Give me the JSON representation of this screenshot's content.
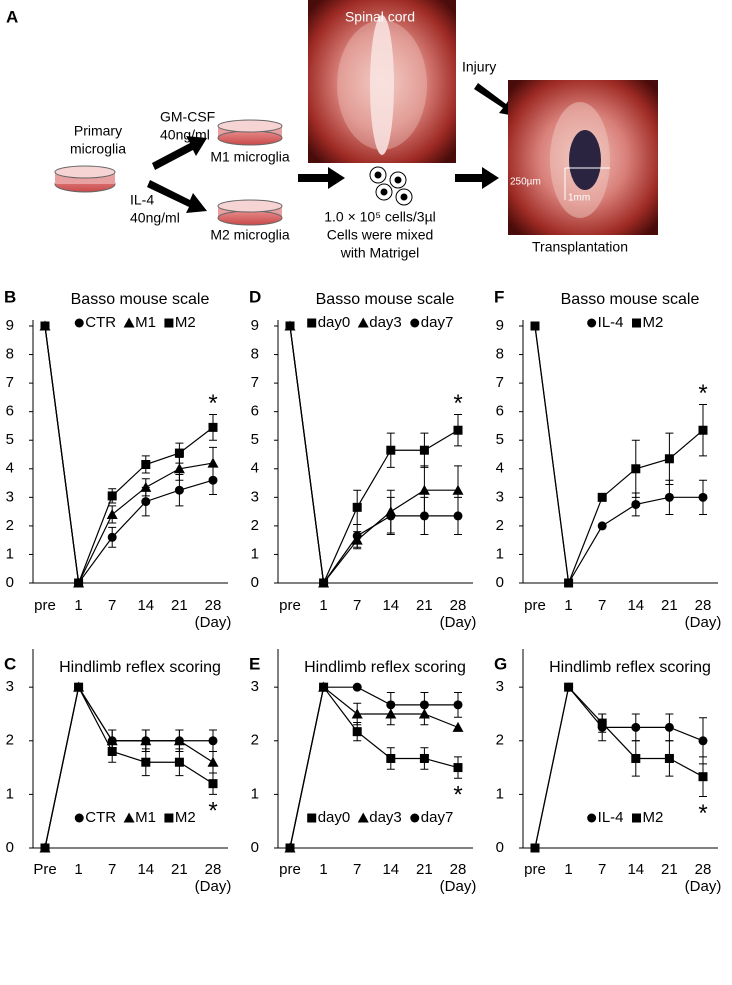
{
  "schematic": {
    "panel": "A",
    "primary": [
      "Primary",
      "microglia"
    ],
    "gmcsf": [
      "GM-CSF",
      "40ng/ml"
    ],
    "il4": [
      "IL-4",
      "40ng/ml"
    ],
    "m1": "M1 microglia",
    "m2": "M2 microglia",
    "spinal_cord": "Spinal cord",
    "injury": "Injury",
    "cells": [
      "1.0 × 10⁵ cells/3µl",
      "Cells were mixed",
      "with Matrigel"
    ],
    "transplantation": "Transplantation",
    "scale_width": "250µm",
    "scale_length": "1mm"
  },
  "chart_data": [
    {
      "type": "line",
      "panel": "B",
      "title": "Basso mouse scale",
      "categories": [
        "pre",
        "1",
        "7",
        "14",
        "21",
        "28"
      ],
      "x_label": "(Day)",
      "ylim": [
        0,
        9
      ],
      "yticks": [
        0,
        1,
        2,
        3,
        4,
        5,
        6,
        7,
        8,
        9
      ],
      "legend": "top",
      "annotation": "*",
      "series": [
        {
          "name": "CTR",
          "marker": "circle",
          "color": "#000000",
          "values": [
            9,
            0,
            1.6,
            2.85,
            3.25,
            3.6
          ],
          "errors": [
            null,
            null,
            0.35,
            0.5,
            0.55,
            0.5
          ]
        },
        {
          "name": "M1",
          "marker": "triangle",
          "color": "#000000",
          "values": [
            9,
            0,
            2.4,
            3.35,
            4.0,
            4.2
          ],
          "errors": [
            null,
            null,
            0.3,
            0.3,
            0.4,
            0.55
          ]
        },
        {
          "name": "M2",
          "marker": "square",
          "color": "#000000",
          "values": [
            9,
            0,
            3.05,
            4.15,
            4.55,
            5.45
          ],
          "errors": [
            null,
            null,
            0.25,
            0.3,
            0.35,
            0.45
          ]
        }
      ]
    },
    {
      "type": "line",
      "panel": "D",
      "title": "Basso mouse scale",
      "categories": [
        "pre",
        "1",
        "7",
        "14",
        "21",
        "28"
      ],
      "x_label": "(Day)",
      "ylim": [
        0,
        9
      ],
      "yticks": [
        0,
        1,
        2,
        3,
        4,
        5,
        6,
        7,
        8,
        9
      ],
      "legend": "top",
      "annotation": "*",
      "series": [
        {
          "name": "day0",
          "marker": "square",
          "color": "#000000",
          "values": [
            9,
            0,
            2.65,
            4.65,
            4.65,
            5.35
          ],
          "errors": [
            null,
            null,
            0.6,
            0.6,
            0.6,
            0.55
          ]
        },
        {
          "name": "day3",
          "marker": "triangle",
          "color": "#000000",
          "values": [
            9,
            0,
            1.5,
            2.5,
            3.25,
            3.25
          ],
          "errors": [
            null,
            null,
            0.3,
            0.75,
            0.85,
            0.85
          ]
        },
        {
          "name": "day7",
          "marker": "circle",
          "color": "#000000",
          "values": [
            9,
            0,
            1.65,
            2.35,
            2.35,
            2.35
          ],
          "errors": [
            null,
            null,
            0.4,
            0.65,
            0.65,
            0.65
          ]
        }
      ]
    },
    {
      "type": "line",
      "panel": "F",
      "title": "Basso mouse scale",
      "categories": [
        "pre",
        "1",
        "7",
        "14",
        "21",
        "28"
      ],
      "x_label": "(Day)",
      "ylim": [
        0,
        9
      ],
      "yticks": [
        0,
        1,
        2,
        3,
        4,
        5,
        6,
        7,
        8,
        9
      ],
      "legend": "top",
      "annotation": "*",
      "series": [
        {
          "name": "IL-4",
          "marker": "circle",
          "color": "#000000",
          "values": [
            9,
            0,
            2.0,
            2.75,
            3.0,
            3.0
          ],
          "errors": [
            null,
            null,
            null,
            0.4,
            0.6,
            0.6
          ]
        },
        {
          "name": "M2",
          "marker": "square",
          "color": "#000000",
          "values": [
            9,
            0,
            3.0,
            4.0,
            4.35,
            5.35
          ],
          "errors": [
            null,
            null,
            null,
            1.0,
            0.9,
            0.9
          ]
        }
      ]
    },
    {
      "type": "line",
      "panel": "C",
      "title": "Hindlimb reflex scoring",
      "categories": [
        "Pre",
        "1",
        "7",
        "14",
        "21",
        "28"
      ],
      "x_label": "(Day)",
      "ylim": [
        0,
        3.6
      ],
      "yticks": [
        0,
        1,
        2,
        3
      ],
      "legend": "bottom",
      "annotation": "*",
      "series": [
        {
          "name": "CTR",
          "marker": "circle",
          "color": "#000000",
          "values": [
            0,
            3,
            2,
            2,
            2,
            2
          ],
          "errors": [
            null,
            null,
            0.2,
            0.2,
            0.2,
            0.2
          ]
        },
        {
          "name": "M1",
          "marker": "triangle",
          "color": "#000000",
          "values": [
            0,
            3,
            2,
            2,
            2,
            1.6
          ],
          "errors": [
            null,
            null,
            0.2,
            0.2,
            0.2,
            0.2
          ]
        },
        {
          "name": "M2",
          "marker": "square",
          "color": "#000000",
          "values": [
            0,
            3,
            1.8,
            1.6,
            1.6,
            1.2
          ],
          "errors": [
            null,
            null,
            0.2,
            0.25,
            0.25,
            0.2
          ]
        }
      ]
    },
    {
      "type": "line",
      "panel": "E",
      "title": "Hindlimb reflex scoring",
      "categories": [
        "pre",
        "1",
        "7",
        "14",
        "21",
        "28"
      ],
      "x_label": "(Day)",
      "ylim": [
        0,
        3.6
      ],
      "yticks": [
        0,
        1,
        2,
        3
      ],
      "legend": "bottom",
      "annotation": "*",
      "series": [
        {
          "name": "day0",
          "marker": "square",
          "color": "#000000",
          "values": [
            0,
            3,
            2.17,
            1.67,
            1.67,
            1.5
          ],
          "errors": [
            null,
            null,
            0.17,
            0.2,
            0.2,
            0.2
          ]
        },
        {
          "name": "day3",
          "marker": "triangle",
          "color": "#000000",
          "values": [
            0,
            3,
            2.5,
            2.5,
            2.5,
            2.25
          ],
          "errors": [
            null,
            null,
            0.2,
            0.2,
            0.2,
            null
          ]
        },
        {
          "name": "day7",
          "marker": "circle",
          "color": "#000000",
          "values": [
            0,
            3,
            3,
            2.67,
            2.67,
            2.67
          ],
          "errors": [
            null,
            null,
            null,
            0.23,
            0.23,
            0.23
          ]
        }
      ]
    },
    {
      "type": "line",
      "panel": "G",
      "title": "Hindlimb reflex scoring",
      "categories": [
        "pre",
        "1",
        "7",
        "14",
        "21",
        "28"
      ],
      "x_label": "(Day)",
      "ylim": [
        0,
        3.6
      ],
      "yticks": [
        0,
        1,
        2,
        3
      ],
      "legend": "bottom",
      "annotation": "*",
      "series": [
        {
          "name": "IL-4",
          "marker": "circle",
          "color": "#000000",
          "values": [
            0,
            3,
            2.25,
            2.25,
            2.25,
            2.0
          ],
          "errors": [
            null,
            null,
            0.25,
            0.25,
            0.25,
            0.43
          ]
        },
        {
          "name": "M2",
          "marker": "square",
          "color": "#000000",
          "values": [
            0,
            3,
            2.33,
            1.67,
            1.67,
            1.33
          ],
          "errors": [
            null,
            null,
            0.17,
            0.33,
            0.33,
            0.37
          ]
        }
      ]
    }
  ]
}
